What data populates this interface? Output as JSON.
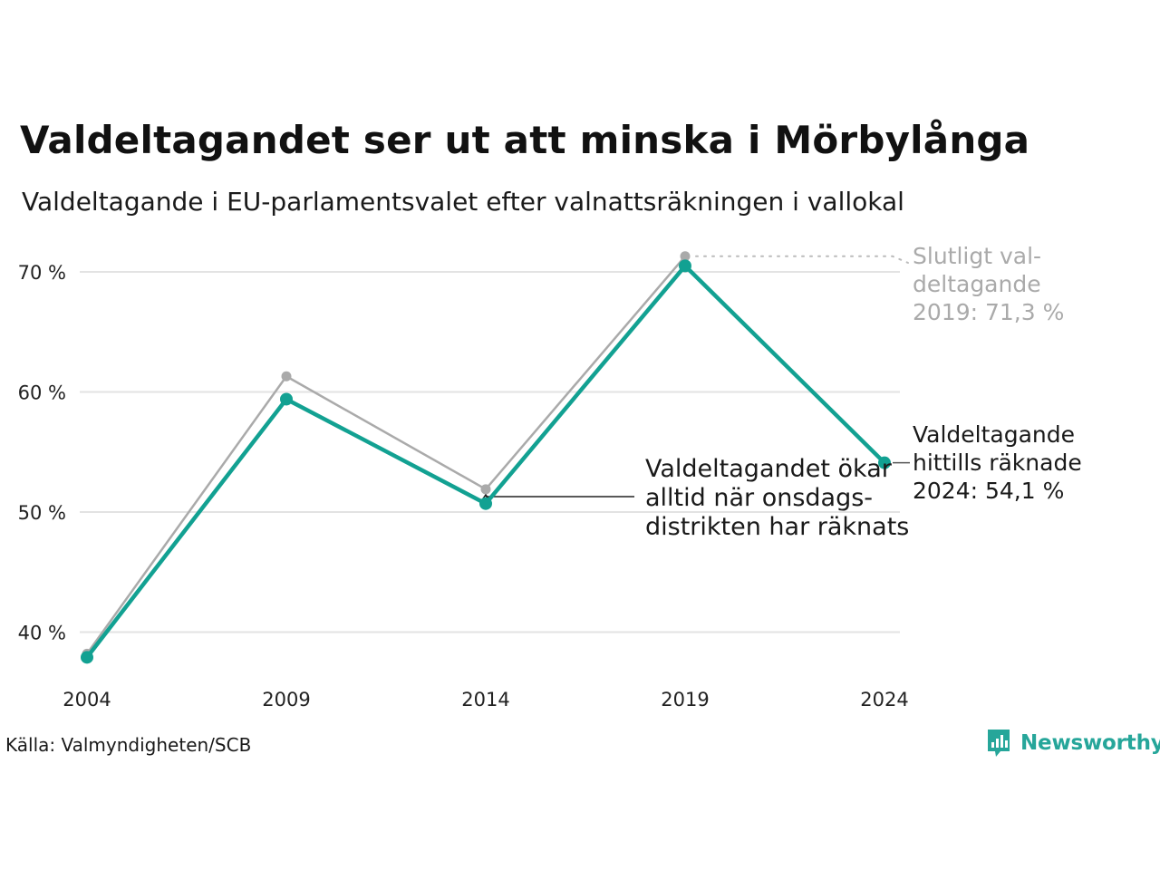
{
  "title": "Valdeltagandet ser ut att minska i Mörbylånga",
  "subtitle": "Valdeltagande i EU-parlamentsvalet efter valnattsräkningen i vallokal",
  "source": "Källa: Valmyndigheten/SCB",
  "brand": {
    "name": "Newsworthy",
    "color": "#26a69a",
    "icon": "newsworthy-logo-icon"
  },
  "colors": {
    "teal": "#12a192",
    "gray": "#aaaaaa",
    "grid": "#e3e3e3",
    "annotation_gray": "#aaaaaa"
  },
  "chart_data": {
    "type": "line",
    "x": [
      "2004",
      "2009",
      "2014",
      "2019",
      "2024"
    ],
    "ylim": [
      36,
      72
    ],
    "yticks": [
      40,
      50,
      60,
      70
    ],
    "ytick_labels": [
      "40 %",
      "50 %",
      "60 %",
      "70 %"
    ],
    "grid": true,
    "series": [
      {
        "name": "",
        "color": "#aaaaaa",
        "values": [
          38.2,
          61.3,
          51.9,
          71.3,
          null
        ]
      },
      {
        "name": "",
        "color": "#12a192",
        "values": [
          37.9,
          59.4,
          50.7,
          70.5,
          54.1
        ]
      }
    ],
    "annotations": [
      {
        "lines": [
          "Slutligt val-",
          "deltagande",
          "2019: 71,3 %"
        ],
        "color": "#aaaaaa"
      },
      {
        "lines": [
          "Valdeltagande",
          "hittills räknade",
          "2024: 54,1 %"
        ],
        "color": "#1a1a1a"
      },
      {
        "lines": [
          "Valdeltagandet ökar",
          "alltid när onsdags-",
          "distrikten har räknats"
        ],
        "color": "#1a1a1a"
      }
    ]
  }
}
